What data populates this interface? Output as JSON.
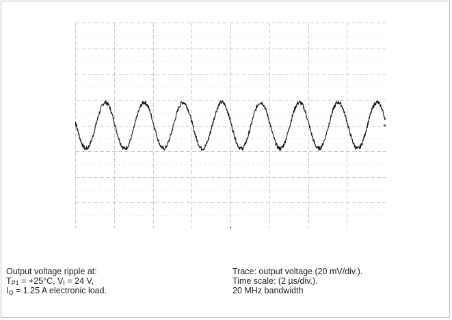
{
  "chart_data": {
    "type": "line",
    "title": "",
    "xlabel": "",
    "ylabel": "",
    "x_divisions": 8,
    "y_divisions": 8,
    "x_units_per_div": 2,
    "x_unit": "µs",
    "y_units_per_div": 20,
    "y_unit": "mV",
    "xlim": [
      0,
      16
    ],
    "ylim": [
      -80,
      80
    ],
    "grid": true,
    "series": [
      {
        "shape": "sine",
        "frequency_mhz": 0.5,
        "amplitude_mv": 18,
        "offset_mv": 0,
        "color": "#111111"
      }
    ]
  },
  "caption": {
    "left": {
      "line1": "Output voltage ripple  at:",
      "tp_symbol": "T",
      "tp_sub": "P1",
      "tp_rest": " = +25°C, V",
      "vi_sub": "I",
      "vi_rest": " = 24 V,",
      "io_symbol": "I",
      "io_sub": "O",
      "io_rest": " = 1.25 A electronic load."
    },
    "right": {
      "line1": "Trace: output voltage (20 mV/div.).",
      "line2": "Time scale: (2 µs/div.).",
      "line3": "20 MHz bandwidth"
    }
  }
}
